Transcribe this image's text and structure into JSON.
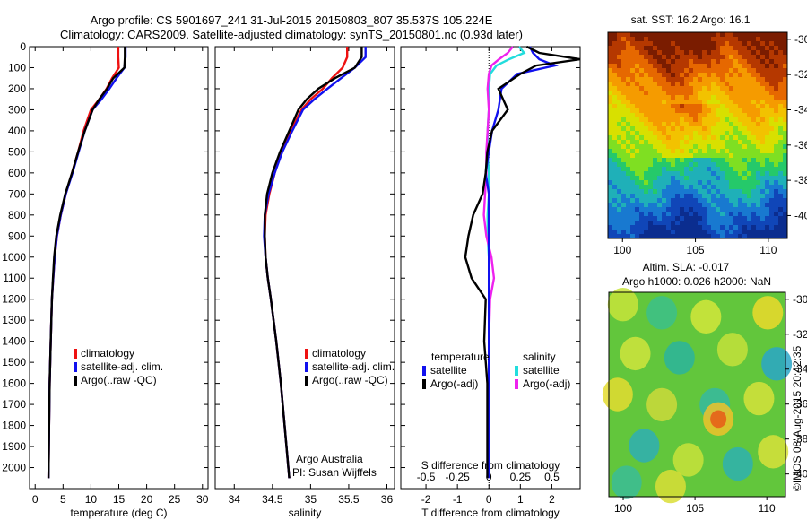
{
  "header": {
    "line1": "Argo profile: CS 5901697_241 31-Jul-2015 20150803_807 35.537S 105.224E",
    "line2": "Climatology: CARS2009. Satellite-adjusted climatology: synTS_20150801.nc (0.93d later)"
  },
  "colors": {
    "climatology": "#ee1111",
    "satellite": "#1111ee",
    "argo": "#000000",
    "sat_salinity": "#22dddd",
    "argo_salinity": "#ee22ee"
  },
  "depth_axis": {
    "range": [
      0,
      2100
    ],
    "ticks": [
      "0",
      "100",
      "200",
      "300",
      "400",
      "500",
      "600",
      "700",
      "800",
      "900",
      "1000",
      "1100",
      "1200",
      "1300",
      "1400",
      "1500",
      "1600",
      "1700",
      "1800",
      "1900",
      "2000"
    ]
  },
  "legend_profile": {
    "climatology": "climatology",
    "satellite": "satellite-adj. clim.",
    "argo": "Argo(..raw -QC)"
  },
  "legend_diff": {
    "temperature_header": "temperature",
    "salinity_header": "salinity",
    "t_satellite": "satellite",
    "t_argo": "Argo(-adj)",
    "s_satellite": "satellite",
    "s_argo": "Argo(-adj)"
  },
  "credits": {
    "line1": "Argo Australia",
    "line2": "PI: Susan Wijffels"
  },
  "s_diff_axis": {
    "label": "S difference from climatology",
    "ticks": [
      "-0.5",
      "-0.25",
      "0",
      "0.25",
      "0.5"
    ],
    "values": [
      -0.5,
      -0.25,
      0,
      0.25,
      0.5
    ]
  },
  "sst_map": {
    "title": "sat. SST: 16.2  Argo: 16.1",
    "lon_ticks": [
      "100",
      "105",
      "110"
    ],
    "lat_ticks": [
      "-30",
      "-32",
      "-34",
      "-36",
      "-38",
      "-40"
    ]
  },
  "sla_map": {
    "title_line1": "Altim. SLA: -0.017",
    "title_line2": "Argo h1000: 0.026 h2000: NaN",
    "lon_ticks": [
      "100",
      "105",
      "110"
    ],
    "lat_ticks": [
      "-30",
      "-32",
      "-34",
      "-36",
      "-38",
      "-40"
    ]
  },
  "timestamp": "©IMOS 08-Aug-2015 20:42:35",
  "chart_data": [
    {
      "type": "line",
      "xlabel": "temperature (deg C)",
      "xlim": [
        -1,
        31
      ],
      "xticks": [
        "0",
        "5",
        "10",
        "15",
        "20",
        "25",
        "30"
      ],
      "ylim": [
        0,
        2100
      ],
      "y_reversed": true,
      "series": [
        {
          "name": "climatology",
          "x": [
            14.9,
            14.9,
            15.0,
            13.8,
            12.8,
            11.5,
            10.0,
            8.7,
            7.7,
            6.6,
            5.5,
            4.6,
            3.9,
            3.5,
            3.25,
            3.0,
            2.8,
            2.6,
            2.5,
            2.4
          ],
          "y": [
            0,
            50,
            100,
            150,
            200,
            250,
            300,
            400,
            500,
            600,
            700,
            800,
            900,
            1000,
            1100,
            1200,
            1400,
            1600,
            1800,
            2050
          ]
        },
        {
          "name": "satellite-adj. clim.",
          "x": [
            16.2,
            16.2,
            16.0,
            14.6,
            13.3,
            11.9,
            10.3,
            8.9,
            7.8,
            6.7,
            5.5,
            4.6,
            3.9,
            3.5,
            3.25,
            3.0,
            2.8,
            2.6,
            2.5,
            2.4
          ],
          "y": [
            0,
            50,
            100,
            150,
            200,
            250,
            300,
            400,
            500,
            600,
            700,
            800,
            900,
            1000,
            1100,
            1200,
            1400,
            1600,
            1800,
            2050
          ]
        },
        {
          "name": "Argo(..raw -QC)",
          "x": [
            16.1,
            16.1,
            16.0,
            14.0,
            12.9,
            11.5,
            10.3,
            8.9,
            7.7,
            6.6,
            5.4,
            4.5,
            3.8,
            3.4,
            3.2,
            3.0,
            2.8,
            2.6,
            2.5,
            2.4
          ],
          "y": [
            0,
            50,
            100,
            150,
            200,
            250,
            300,
            400,
            500,
            600,
            700,
            800,
            900,
            1000,
            1100,
            1200,
            1400,
            1600,
            1800,
            2050
          ]
        }
      ]
    },
    {
      "type": "line",
      "xlabel": "salinity",
      "xlim": [
        33.75,
        36.1
      ],
      "xticks": [
        "34",
        "34.5",
        "35",
        "35.5",
        "36"
      ],
      "ylim": [
        0,
        2100
      ],
      "y_reversed": true,
      "series": [
        {
          "name": "climatology",
          "x": [
            35.48,
            35.48,
            35.42,
            35.28,
            35.16,
            35.0,
            34.88,
            34.74,
            34.62,
            34.53,
            34.46,
            34.41,
            34.4,
            34.41,
            34.44,
            34.48,
            34.55,
            34.61,
            34.66,
            34.72
          ],
          "y": [
            0,
            50,
            100,
            150,
            200,
            250,
            300,
            400,
            500,
            600,
            700,
            800,
            900,
            1000,
            1100,
            1200,
            1400,
            1600,
            1800,
            2050
          ]
        },
        {
          "name": "satellite-adj. clim.",
          "x": [
            35.72,
            35.72,
            35.58,
            35.4,
            35.22,
            35.05,
            34.9,
            34.76,
            34.63,
            34.53,
            34.45,
            34.4,
            34.39,
            34.41,
            34.44,
            34.48,
            34.55,
            34.61,
            34.66,
            34.72
          ],
          "y": [
            0,
            50,
            100,
            150,
            200,
            250,
            300,
            400,
            500,
            600,
            700,
            800,
            900,
            1000,
            1100,
            1200,
            1400,
            1600,
            1800,
            2050
          ]
        },
        {
          "name": "Argo(..raw -QC)",
          "x": [
            35.67,
            35.67,
            35.58,
            35.32,
            35.1,
            34.95,
            34.84,
            34.72,
            34.6,
            34.5,
            34.43,
            34.4,
            34.4,
            34.41,
            34.44,
            34.48,
            34.55,
            34.61,
            34.66,
            34.72
          ],
          "y": [
            0,
            50,
            100,
            150,
            200,
            250,
            300,
            400,
            500,
            600,
            700,
            800,
            900,
            1000,
            1100,
            1200,
            1400,
            1600,
            1800,
            2050
          ]
        }
      ]
    },
    {
      "type": "line",
      "xlabel": "T difference from climatology",
      "xlim": [
        -2.8,
        2.9
      ],
      "xticks": [
        "-2",
        "-1",
        "0",
        "1",
        "2"
      ],
      "ylim": [
        0,
        2100
      ],
      "y_reversed": true,
      "series": [
        {
          "name": "satellite",
          "x": [
            1.3,
            1.4,
            1.6,
            2.1,
            0.9,
            0.4,
            0.3,
            0.1,
            0,
            -0.1,
            0,
            0,
            0,
            0,
            0,
            0,
            0,
            0,
            0,
            0
          ],
          "y": [
            0,
            30,
            60,
            90,
            130,
            200,
            300,
            400,
            500,
            600,
            700,
            800,
            900,
            1000,
            1100,
            1200,
            1400,
            1600,
            1800,
            2050
          ]
        },
        {
          "name": "Argo(-adj)",
          "x": [
            1.2,
            1.6,
            2.9,
            1.5,
            1.0,
            0.3,
            0.6,
            0.1,
            -0.05,
            -0.1,
            -0.2,
            -0.5,
            -0.65,
            -0.75,
            -0.55,
            -0.1,
            -0.15,
            -0.05,
            -0.05,
            -0.05
          ],
          "y": [
            0,
            30,
            60,
            90,
            130,
            200,
            300,
            400,
            500,
            600,
            700,
            800,
            900,
            1000,
            1100,
            1200,
            1400,
            1600,
            1800,
            2050
          ]
        }
      ]
    },
    {
      "type": "line",
      "xlabel": "S difference from climatology",
      "xlim": [
        -0.7,
        0.725
      ],
      "xticks": [
        "-0.5",
        "-0.25",
        "0",
        "0.25",
        "0.5"
      ],
      "ylim": [
        0,
        2100
      ],
      "y_reversed": true,
      "series": [
        {
          "name": "satellite",
          "x": [
            0.24,
            0.28,
            0.16,
            0.06,
            0.01,
            0.0,
            0.0,
            -0.01,
            -0.01,
            0,
            0,
            -0.01,
            -0.01,
            0,
            0,
            0,
            0,
            0,
            0,
            0
          ],
          "y": [
            0,
            30,
            60,
            90,
            130,
            200,
            300,
            400,
            500,
            600,
            700,
            800,
            900,
            1000,
            1100,
            1200,
            1400,
            1600,
            1800,
            2050
          ]
        },
        {
          "name": "Argo(-adj)",
          "x": [
            0.19,
            0.15,
            0.08,
            0.02,
            0.0,
            -0.01,
            0.0,
            -0.01,
            -0.02,
            -0.02,
            -0.03,
            -0.04,
            -0.02,
            0.02,
            0.04,
            0.01,
            0.0,
            0.0,
            0.0,
            0.0
          ],
          "y": [
            0,
            30,
            60,
            90,
            130,
            200,
            300,
            400,
            500,
            600,
            700,
            800,
            900,
            1000,
            1100,
            1200,
            1400,
            1600,
            1800,
            2050
          ]
        }
      ]
    }
  ]
}
